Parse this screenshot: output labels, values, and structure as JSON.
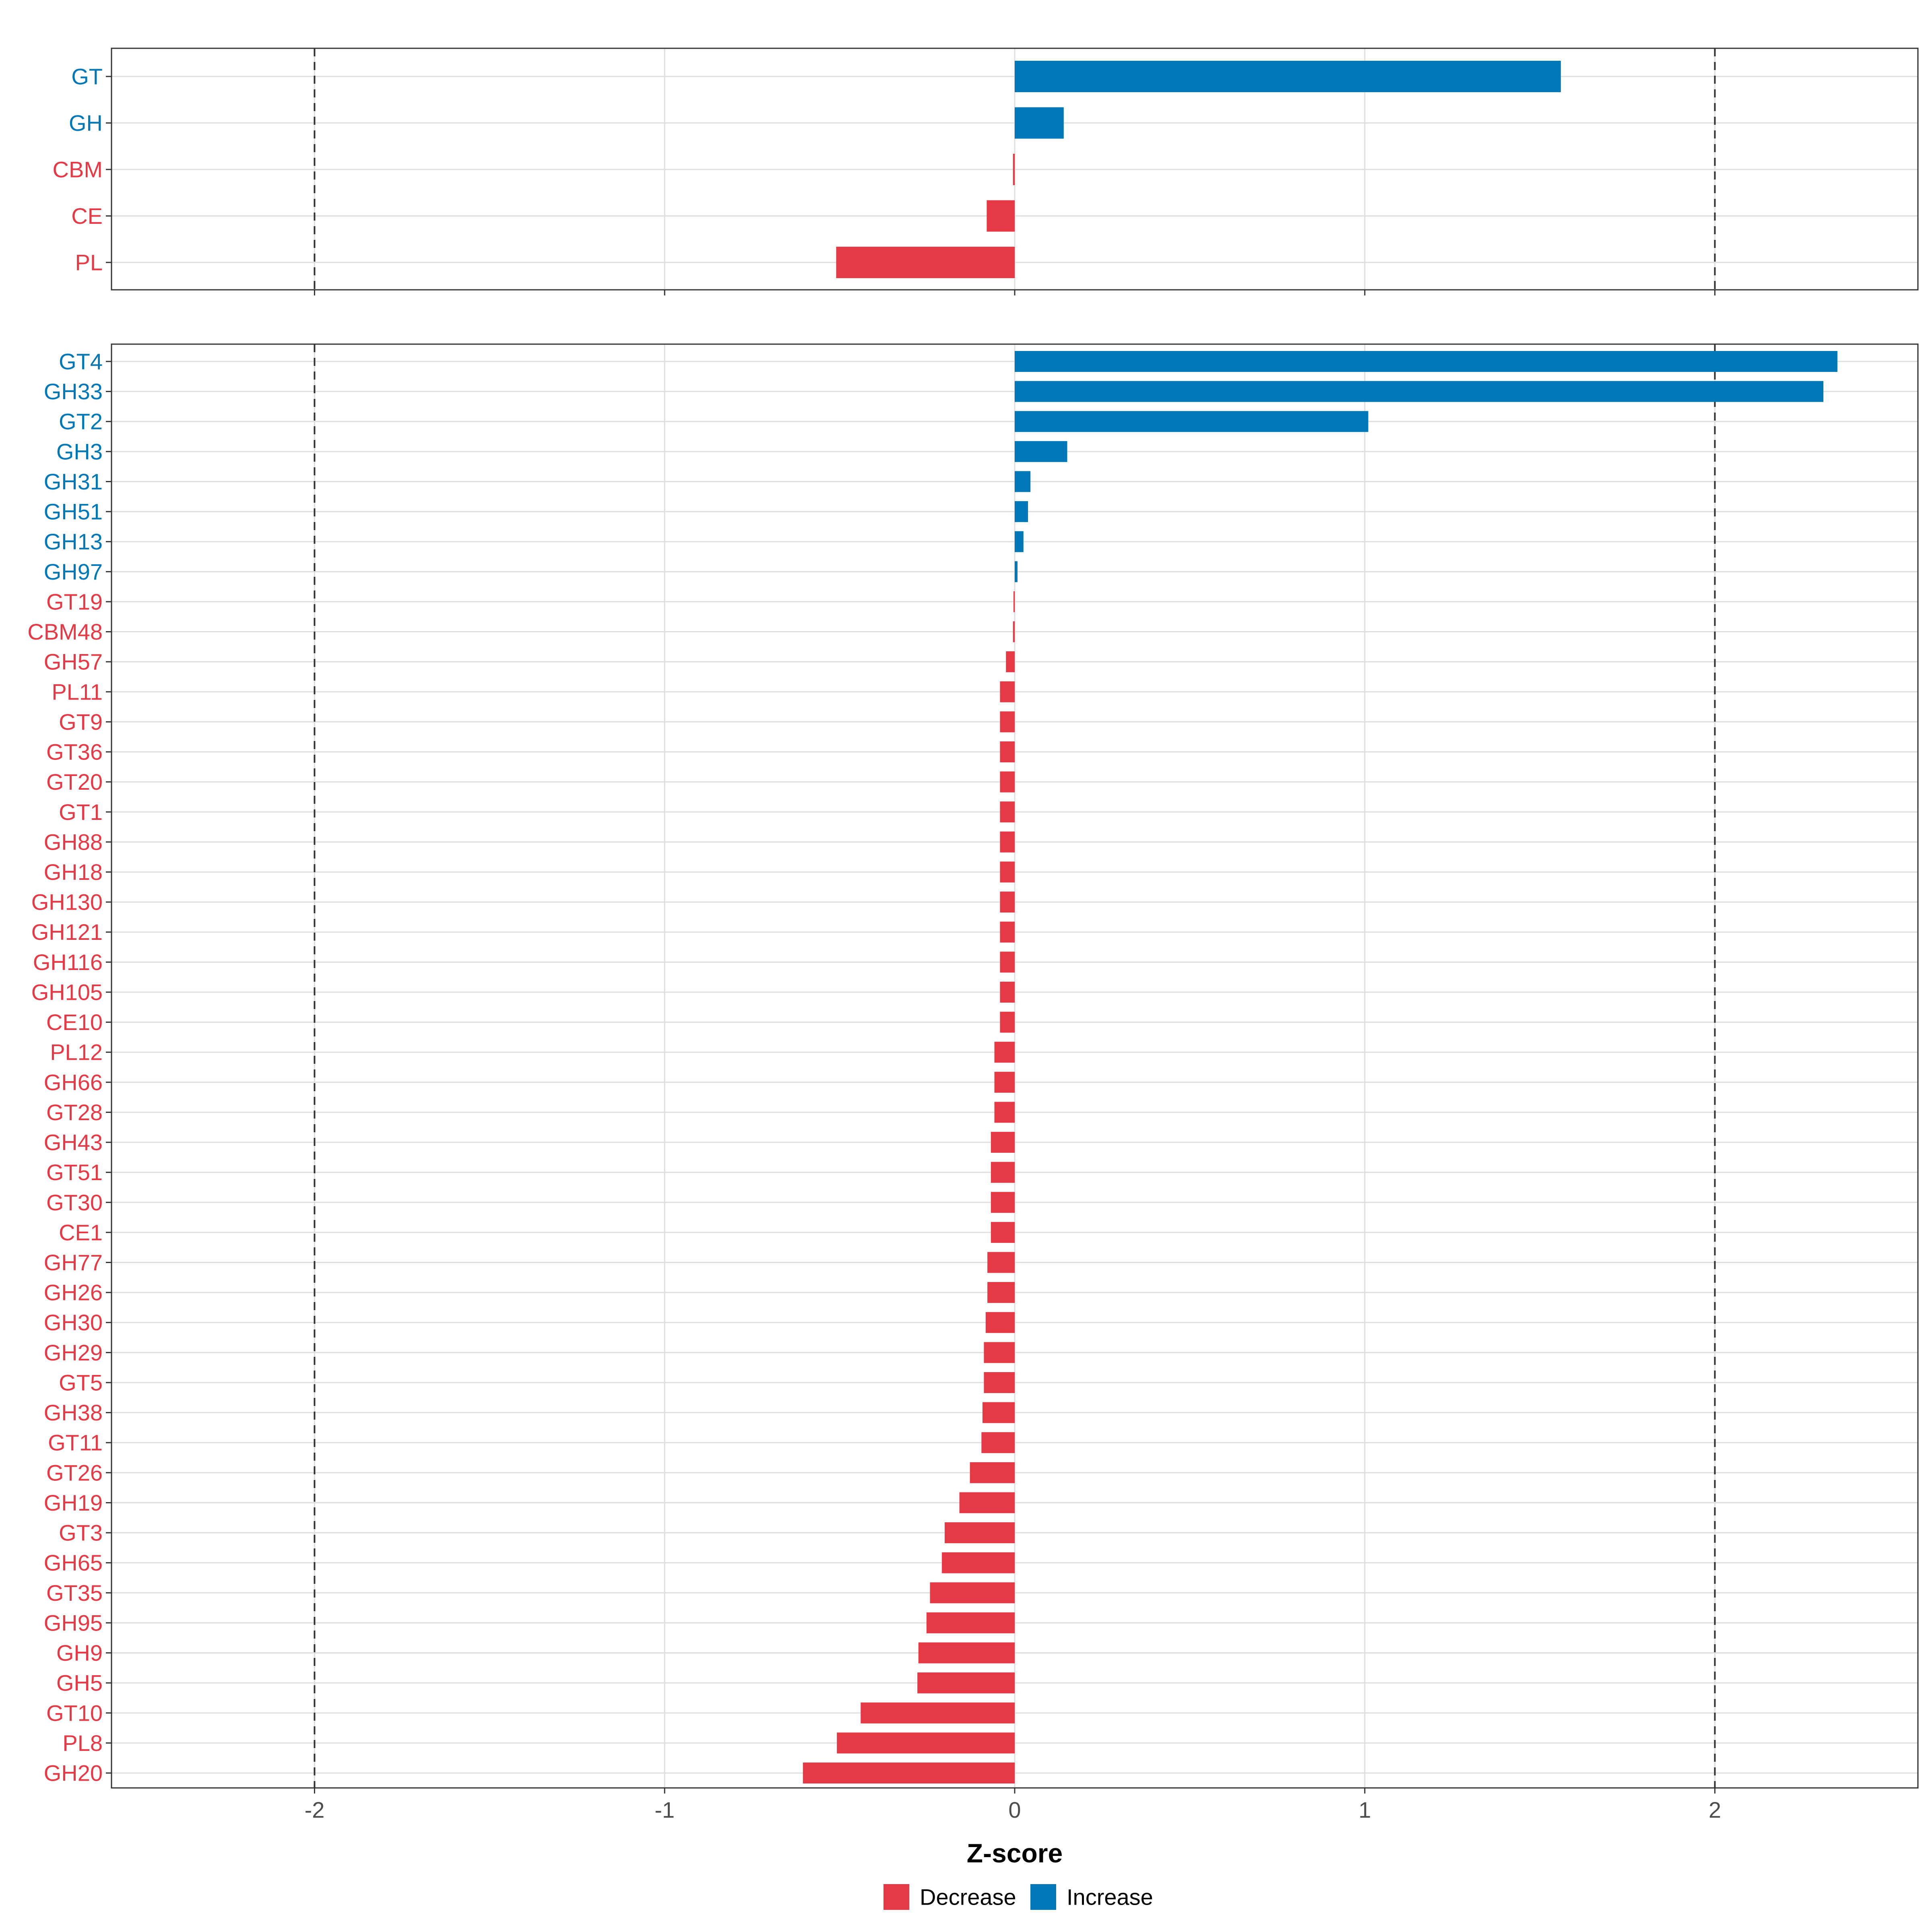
{
  "chart_data": [
    {
      "type": "bar",
      "orientation": "horizontal",
      "panel": "top",
      "categories": [
        "GT",
        "GH",
        "CBM",
        "CE",
        "PL"
      ],
      "values": [
        1.56,
        0.14,
        -0.005,
        -0.08,
        -0.51
      ],
      "groups": [
        "Increase",
        "Increase",
        "Decrease",
        "Decrease",
        "Decrease"
      ],
      "xlim": [
        -2.58,
        2.58
      ],
      "reference_lines": [
        -2,
        2
      ],
      "grid": true
    },
    {
      "type": "bar",
      "orientation": "horizontal",
      "panel": "bottom",
      "categories": [
        "GT4",
        "GH33",
        "GT2",
        "GH3",
        "GH31",
        "GH51",
        "GH13",
        "GH97",
        "GT19",
        "CBM48",
        "GH57",
        "PL11",
        "GT9",
        "GT36",
        "GT20",
        "GT1",
        "GH88",
        "GH18",
        "GH130",
        "GH121",
        "GH116",
        "GH105",
        "CE10",
        "PL12",
        "GH66",
        "GT28",
        "GH43",
        "GT51",
        "GT30",
        "CE1",
        "GH77",
        "GH26",
        "GH30",
        "GH29",
        "GT5",
        "GH38",
        "GT11",
        "GT26",
        "GH19",
        "GT3",
        "GH65",
        "GT35",
        "GH95",
        "GH9",
        "GH5",
        "GT10",
        "PL8",
        "GH20"
      ],
      "values": [
        2.35,
        2.31,
        1.01,
        0.15,
        0.045,
        0.038,
        0.025,
        0.008,
        -0.002,
        -0.005,
        -0.025,
        -0.042,
        -0.042,
        -0.042,
        -0.042,
        -0.042,
        -0.042,
        -0.042,
        -0.042,
        -0.042,
        -0.042,
        -0.042,
        -0.042,
        -0.058,
        -0.058,
        -0.058,
        -0.068,
        -0.068,
        -0.068,
        -0.068,
        -0.078,
        -0.078,
        -0.083,
        -0.088,
        -0.088,
        -0.092,
        -0.095,
        -0.128,
        -0.158,
        -0.2,
        -0.208,
        -0.242,
        -0.252,
        -0.275,
        -0.278,
        -0.44,
        -0.508,
        -0.605
      ],
      "groups": [
        "Increase",
        "Increase",
        "Increase",
        "Increase",
        "Increase",
        "Increase",
        "Increase",
        "Increase",
        "Decrease",
        "Decrease",
        "Decrease",
        "Decrease",
        "Decrease",
        "Decrease",
        "Decrease",
        "Decrease",
        "Decrease",
        "Decrease",
        "Decrease",
        "Decrease",
        "Decrease",
        "Decrease",
        "Decrease",
        "Decrease",
        "Decrease",
        "Decrease",
        "Decrease",
        "Decrease",
        "Decrease",
        "Decrease",
        "Decrease",
        "Decrease",
        "Decrease",
        "Decrease",
        "Decrease",
        "Decrease",
        "Decrease",
        "Decrease",
        "Decrease",
        "Decrease",
        "Decrease",
        "Decrease",
        "Decrease",
        "Decrease",
        "Decrease",
        "Decrease",
        "Decrease",
        "Decrease"
      ],
      "xlim": [
        -2.58,
        2.58
      ],
      "reference_lines": [
        -2,
        2
      ],
      "grid": true
    }
  ],
  "x_axis": {
    "ticks": [
      -2,
      -1,
      0,
      1,
      2
    ],
    "tick_labels": [
      "-2",
      "-1",
      "0",
      "1",
      "2"
    ],
    "title": "Z-score"
  },
  "legend": {
    "position": "bottom",
    "entries": [
      {
        "label": "Decrease",
        "color": "#e63946"
      },
      {
        "label": "Increase",
        "color": "#0077b6"
      }
    ]
  },
  "colors": {
    "Decrease": "#e63946",
    "Increase": "#0077b6",
    "grid": "#dedede",
    "panel_border": "#333333",
    "reference_line": "#333333"
  }
}
